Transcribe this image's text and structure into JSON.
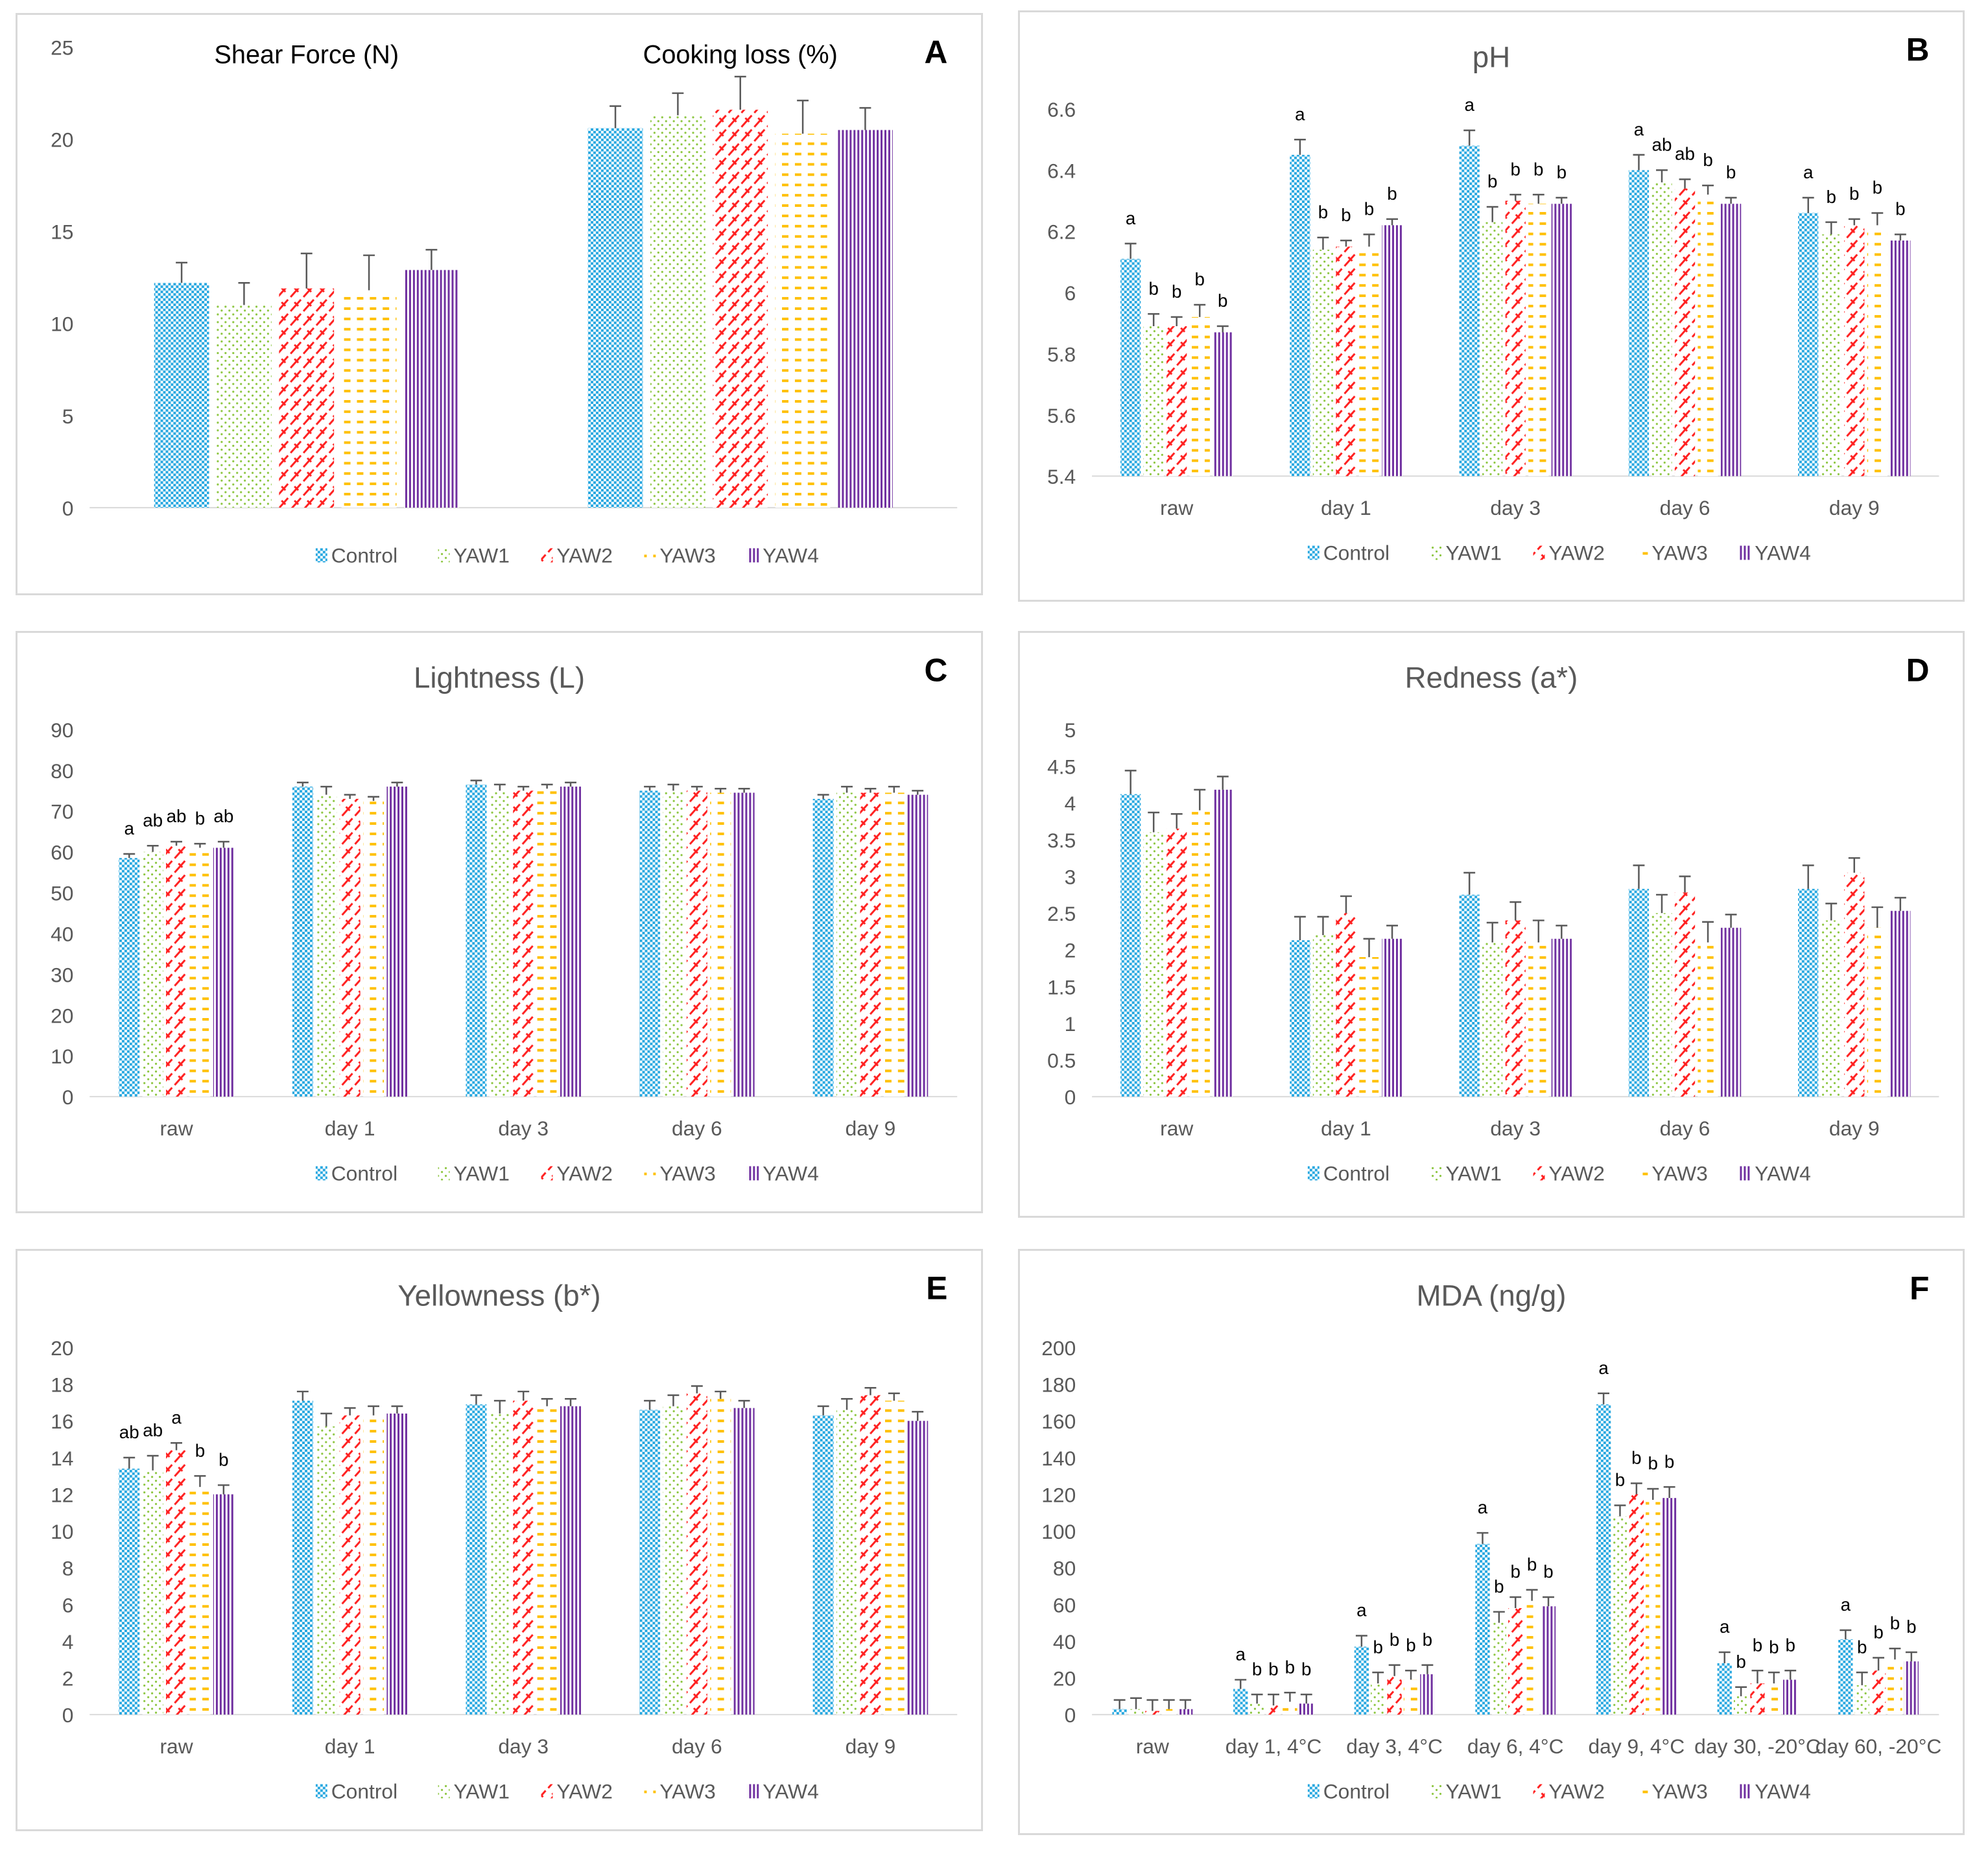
{
  "series_colors": {
    "Control": "#29a8e0",
    "YAW1": "#8cc63f",
    "YAW2": "#ff2020",
    "YAW3": "#ffc000",
    "YAW4": "#7030a0"
  },
  "chart_data": [
    {
      "type": "bar",
      "panel_letter": "A",
      "title": "",
      "group_titles": [
        "Shear Force (N)",
        "Cooking loss (%)"
      ],
      "categories": [
        "",
        ""
      ],
      "ylim": [
        0,
        25
      ],
      "yticks": [
        0,
        5,
        10,
        15,
        20,
        25
      ],
      "series": [
        {
          "name": "Control",
          "values": [
            12.2,
            20.6
          ],
          "errors": [
            1.1,
            1.2
          ],
          "letters": [
            "",
            ""
          ]
        },
        {
          "name": "YAW1",
          "values": [
            11.0,
            21.3
          ],
          "errors": [
            1.2,
            1.2
          ],
          "letters": [
            "",
            ""
          ]
        },
        {
          "name": "YAW2",
          "values": [
            11.9,
            21.6
          ],
          "errors": [
            1.9,
            1.8
          ],
          "letters": [
            "",
            ""
          ]
        },
        {
          "name": "YAW3",
          "values": [
            11.8,
            20.3
          ],
          "errors": [
            1.9,
            1.8
          ],
          "letters": [
            "",
            ""
          ]
        },
        {
          "name": "YAW4",
          "values": [
            12.9,
            20.5
          ],
          "errors": [
            1.1,
            1.2
          ],
          "letters": [
            "",
            ""
          ]
        }
      ]
    },
    {
      "type": "bar",
      "panel_letter": "B",
      "title": "pH",
      "group_titles": [],
      "categories": [
        "raw",
        "day 1",
        "day 3",
        "day 6",
        "day 9"
      ],
      "ylim": [
        5.4,
        6.6
      ],
      "yticks": [
        5.4,
        5.6,
        5.8,
        6,
        6.2,
        6.4,
        6.6
      ],
      "series": [
        {
          "name": "Control",
          "values": [
            6.11,
            6.45,
            6.48,
            6.4,
            6.26
          ],
          "errors": [
            0.05,
            0.05,
            0.05,
            0.05,
            0.05
          ],
          "letters": [
            "a",
            "a",
            "a",
            "a",
            "a"
          ]
        },
        {
          "name": "YAW1",
          "values": [
            5.89,
            6.14,
            6.23,
            6.36,
            6.19
          ],
          "errors": [
            0.04,
            0.04,
            0.05,
            0.04,
            0.04
          ],
          "letters": [
            "b",
            "b",
            "b",
            "ab",
            "b"
          ]
        },
        {
          "name": "YAW2",
          "values": [
            5.89,
            6.15,
            6.3,
            6.34,
            6.22
          ],
          "errors": [
            0.03,
            0.02,
            0.02,
            0.03,
            0.02
          ],
          "letters": [
            "b",
            "b",
            "b",
            "ab",
            "b"
          ]
        },
        {
          "name": "YAW3",
          "values": [
            5.92,
            6.15,
            6.29,
            6.32,
            6.22
          ],
          "errors": [
            0.04,
            0.04,
            0.03,
            0.03,
            0.04
          ],
          "letters": [
            "b",
            "b",
            "b",
            "b",
            "b"
          ]
        },
        {
          "name": "YAW4",
          "values": [
            5.87,
            6.22,
            6.29,
            6.29,
            6.17
          ],
          "errors": [
            0.02,
            0.02,
            0.02,
            0.02,
            0.02
          ],
          "letters": [
            "b",
            "b",
            "b",
            "b",
            "b"
          ]
        }
      ]
    },
    {
      "type": "bar",
      "panel_letter": "C",
      "title": "Lightness (L)",
      "group_titles": [],
      "categories": [
        "raw",
        "day 1",
        "day 3",
        "day 6",
        "day 9"
      ],
      "ylim": [
        0,
        90
      ],
      "yticks": [
        0,
        10,
        20,
        30,
        40,
        50,
        60,
        70,
        80,
        90
      ],
      "series": [
        {
          "name": "Control",
          "values": [
            58.5,
            76,
            76.5,
            75,
            73
          ],
          "errors": [
            1,
            1,
            1,
            1,
            1
          ],
          "letters": [
            "a",
            "",
            "",
            "",
            ""
          ]
        },
        {
          "name": "YAW1",
          "values": [
            60,
            74,
            75,
            75,
            74.5
          ],
          "errors": [
            1.5,
            2,
            1.5,
            1.5,
            1.5
          ],
          "letters": [
            "ab",
            "",
            "",
            "",
            ""
          ]
        },
        {
          "name": "YAW2",
          "values": [
            61.5,
            73,
            75,
            75,
            74.5
          ],
          "errors": [
            1,
            1,
            1,
            1,
            1
          ],
          "letters": [
            "ab",
            "",
            "",
            "",
            ""
          ]
        },
        {
          "name": "YAW3",
          "values": [
            61,
            72.5,
            75.5,
            74.5,
            74.5
          ],
          "errors": [
            1,
            1,
            1,
            1,
            1.5
          ],
          "letters": [
            "b",
            "",
            "",
            "",
            ""
          ]
        },
        {
          "name": "YAW4",
          "values": [
            61,
            76,
            76,
            74.5,
            74
          ],
          "errors": [
            1.5,
            1,
            1,
            1,
            1
          ],
          "letters": [
            "ab",
            "",
            "",
            "",
            ""
          ]
        }
      ]
    },
    {
      "type": "bar",
      "panel_letter": "D",
      "title": "Redness (a*)",
      "group_titles": [],
      "categories": [
        "raw",
        "day 1",
        "day 3",
        "day 6",
        "day 9"
      ],
      "ylim": [
        0,
        5
      ],
      "yticks": [
        0,
        0.5,
        1,
        1.5,
        2,
        2.5,
        3,
        3.5,
        4,
        4.5,
        5
      ],
      "series": [
        {
          "name": "Control",
          "values": [
            4.12,
            2.13,
            2.75,
            2.83,
            2.83
          ],
          "errors": [
            0.32,
            0.32,
            0.3,
            0.32,
            0.32
          ],
          "letters": [
            "",
            "",
            "",
            "",
            ""
          ]
        },
        {
          "name": "YAW1",
          "values": [
            3.6,
            2.2,
            2.1,
            2.5,
            2.4
          ],
          "errors": [
            0.27,
            0.25,
            0.27,
            0.25,
            0.23
          ],
          "letters": [
            "",
            "",
            "",
            "",
            ""
          ]
        },
        {
          "name": "YAW2",
          "values": [
            3.65,
            2.5,
            2.4,
            2.78,
            3.05
          ],
          "errors": [
            0.2,
            0.23,
            0.25,
            0.22,
            0.2
          ],
          "letters": [
            "",
            "",
            "",
            "",
            ""
          ]
        },
        {
          "name": "YAW3",
          "values": [
            3.9,
            1.9,
            2.1,
            2.1,
            2.3
          ],
          "errors": [
            0.28,
            0.25,
            0.3,
            0.28,
            0.28
          ],
          "letters": [
            "",
            "",
            "",
            "",
            ""
          ]
        },
        {
          "name": "YAW4",
          "values": [
            4.18,
            2.15,
            2.15,
            2.3,
            2.53
          ],
          "errors": [
            0.18,
            0.18,
            0.18,
            0.18,
            0.18
          ],
          "letters": [
            "",
            "",
            "",
            "",
            ""
          ]
        }
      ]
    },
    {
      "type": "bar",
      "panel_letter": "E",
      "title": "Yellowness (b*)",
      "group_titles": [],
      "categories": [
        "raw",
        "day 1",
        "day 3",
        "day 6",
        "day 9"
      ],
      "ylim": [
        0,
        20
      ],
      "yticks": [
        0,
        2,
        4,
        6,
        8,
        10,
        12,
        14,
        16,
        18,
        20
      ],
      "series": [
        {
          "name": "Control",
          "values": [
            13.4,
            17.1,
            16.9,
            16.6,
            16.3
          ],
          "errors": [
            0.6,
            0.5,
            0.5,
            0.5,
            0.5
          ],
          "letters": [
            "ab",
            "",
            "",
            "",
            ""
          ]
        },
        {
          "name": "YAW1",
          "values": [
            13.3,
            15.7,
            16.4,
            16.8,
            16.6
          ],
          "errors": [
            0.8,
            0.7,
            0.7,
            0.6,
            0.6
          ],
          "letters": [
            "ab",
            "",
            "",
            "",
            ""
          ]
        },
        {
          "name": "YAW2",
          "values": [
            14.4,
            16.3,
            17.1,
            17.5,
            17.4
          ],
          "errors": [
            0.4,
            0.4,
            0.5,
            0.4,
            0.4
          ],
          "letters": [
            "a",
            "",
            "",
            "",
            ""
          ]
        },
        {
          "name": "YAW3",
          "values": [
            12.4,
            16.3,
            16.8,
            17.2,
            17.1
          ],
          "errors": [
            0.6,
            0.5,
            0.4,
            0.4,
            0.4
          ],
          "letters": [
            "b",
            "",
            "",
            "",
            ""
          ]
        },
        {
          "name": "YAW4",
          "values": [
            12.0,
            16.4,
            16.8,
            16.7,
            16.0
          ],
          "errors": [
            0.5,
            0.4,
            0.4,
            0.4,
            0.5
          ],
          "letters": [
            "b",
            "",
            "",
            "",
            ""
          ]
        }
      ]
    },
    {
      "type": "bar",
      "panel_letter": "F",
      "title": "MDA (ng/g)",
      "group_titles": [],
      "categories": [
        "raw",
        "day 1,  4°C",
        "day 3, 4°C",
        "day 6, 4°C",
        "day 9, 4°C",
        "day 30, -20°C",
        "day 60, -20°C"
      ],
      "ylim": [
        0,
        200
      ],
      "yticks": [
        0,
        20,
        40,
        60,
        80,
        100,
        120,
        140,
        160,
        180,
        200
      ],
      "series": [
        {
          "name": "Control",
          "values": [
            3,
            14,
            37,
            93,
            169,
            28,
            41
          ],
          "errors": [
            5,
            5,
            6,
            6,
            6,
            6,
            5
          ],
          "letters": [
            "",
            "a",
            "a",
            "a",
            "a",
            "a",
            "a"
          ]
        },
        {
          "name": "YAW1",
          "values": [
            3,
            6,
            17,
            50,
            108,
            10,
            16
          ],
          "errors": [
            6,
            5,
            6,
            6,
            6,
            5,
            7
          ],
          "letters": [
            "",
            "b",
            "b",
            "b",
            "b",
            "b",
            "b"
          ]
        },
        {
          "name": "YAW2",
          "values": [
            2,
            5,
            21,
            58,
            120,
            17,
            24
          ],
          "errors": [
            6,
            6,
            6,
            6,
            6,
            7,
            7
          ],
          "letters": [
            "",
            "b",
            "b",
            "b",
            "b",
            "b",
            "b"
          ]
        },
        {
          "name": "YAW3",
          "values": [
            3,
            7,
            19,
            62,
            117,
            17,
            30
          ],
          "errors": [
            5,
            5,
            5,
            6,
            6,
            6,
            6
          ],
          "letters": [
            "",
            "b",
            "b",
            "b",
            "b",
            "b",
            "b"
          ]
        },
        {
          "name": "YAW4",
          "values": [
            3,
            6,
            22,
            59,
            118,
            19,
            29
          ],
          "errors": [
            5,
            5,
            5,
            5,
            6,
            5,
            5
          ],
          "letters": [
            "",
            "b",
            "b",
            "b",
            "b",
            "b",
            "b"
          ]
        }
      ]
    }
  ]
}
